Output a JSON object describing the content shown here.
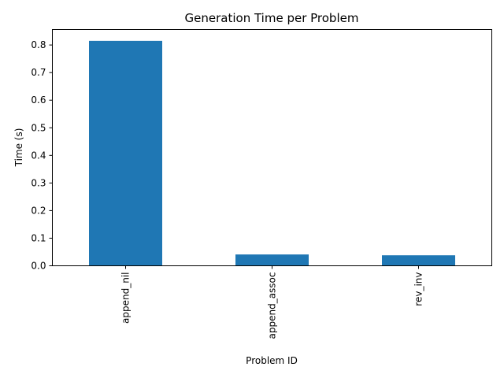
{
  "chart_data": {
    "type": "bar",
    "title": "Generation Time per Problem",
    "xlabel": "Problem ID",
    "ylabel": "Time (s)",
    "categories": [
      "append_nil",
      "append_assoc",
      "rev_inv"
    ],
    "values": [
      0.815,
      0.041,
      0.038
    ],
    "ylim": [
      0,
      0.856
    ],
    "yticks": [
      "0.0",
      "0.1",
      "0.2",
      "0.3",
      "0.4",
      "0.5",
      "0.6",
      "0.7",
      "0.8"
    ],
    "bar_color": "#1f77b4",
    "grid": false,
    "legend": false
  }
}
